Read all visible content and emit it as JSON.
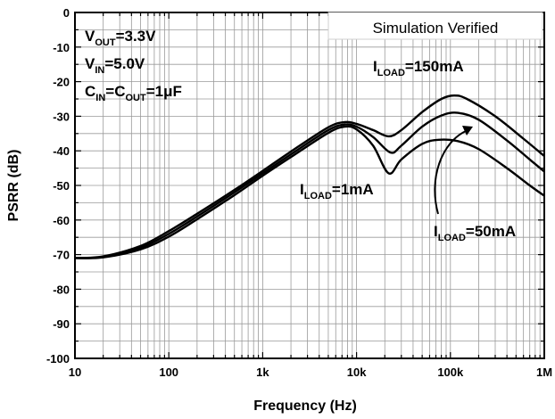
{
  "chart_data": {
    "type": "line",
    "xlabel": "Frequency (Hz)",
    "ylabel": "PSRR (dB)",
    "xscale": "log",
    "xlim": [
      10,
      1000000
    ],
    "ylim": [
      -100,
      0
    ],
    "grid": true,
    "x_ticks": [
      {
        "value": 10,
        "label": "10"
      },
      {
        "value": 100,
        "label": "100"
      },
      {
        "value": 1000,
        "label": "1k"
      },
      {
        "value": 10000,
        "label": "10k"
      },
      {
        "value": 100000,
        "label": "100k"
      },
      {
        "value": 1000000,
        "label": "1M"
      }
    ],
    "y_ticks": [
      0,
      -10,
      -20,
      -30,
      -40,
      -50,
      -60,
      -70,
      -80,
      -90,
      -100
    ],
    "conditions": [
      {
        "main": "V",
        "sub": "OUT",
        "rest": "=3.3V"
      },
      {
        "main": "V",
        "sub": "IN",
        "rest": "=5.0V"
      }
    ],
    "cap_condition": {
      "c1": "C",
      "s1": "IN",
      "mid": "=C",
      "s2": "OUT",
      "rest": "=1μF"
    },
    "note": "Simulation Verified",
    "series": [
      {
        "name": "ILOAD=150mA",
        "x": [
          10,
          20,
          50,
          100,
          200,
          500,
          1000,
          2000,
          5000,
          7500,
          10000,
          15000,
          22000,
          30000,
          50000,
          80000,
          110000,
          150000,
          300000,
          600000,
          1000000
        ],
        "y": [
          -71,
          -70.5,
          -67.5,
          -63.2,
          -58.2,
          -51.3,
          -45.8,
          -40.2,
          -33.2,
          -31.7,
          -32.2,
          -34.0,
          -35.8,
          -34.0,
          -28.8,
          -25.0,
          -24.0,
          -25.0,
          -30.0,
          -36.5,
          -41.5
        ]
      },
      {
        "name": "ILOAD=50mA",
        "x": [
          10,
          20,
          50,
          100,
          200,
          500,
          1000,
          2000,
          5000,
          7500,
          10000,
          15000,
          23000,
          30000,
          50000,
          80000,
          120000,
          200000,
          400000,
          700000,
          1000000
        ],
        "y": [
          -71,
          -70.7,
          -68.0,
          -64.0,
          -59.0,
          -52.0,
          -46.5,
          -41.0,
          -34.0,
          -32.4,
          -33.0,
          -36.0,
          -40.5,
          -38.5,
          -33.0,
          -29.8,
          -29.0,
          -31.0,
          -37.0,
          -42.5,
          -46.0
        ]
      },
      {
        "name": "ILOAD=1mA",
        "x": [
          10,
          20,
          50,
          100,
          200,
          500,
          1000,
          2000,
          5000,
          7500,
          10000,
          15000,
          22000,
          30000,
          50000,
          75000,
          120000,
          200000,
          400000,
          700000,
          1000000
        ],
        "y": [
          -71,
          -70.8,
          -68.5,
          -64.8,
          -59.8,
          -52.8,
          -47.2,
          -41.8,
          -34.8,
          -33.0,
          -33.8,
          -38.5,
          -46.5,
          -42.5,
          -38.0,
          -36.8,
          -37.2,
          -39.5,
          -45.0,
          -50.0,
          -53.0
        ]
      }
    ],
    "annotations": [
      {
        "main": "I",
        "sub": "LOAD",
        "rest": "=150mA"
      },
      {
        "main": "I",
        "sub": "LOAD",
        "rest": "=1mA"
      },
      {
        "main": "I",
        "sub": "LOAD",
        "rest": "=50mA"
      }
    ]
  }
}
